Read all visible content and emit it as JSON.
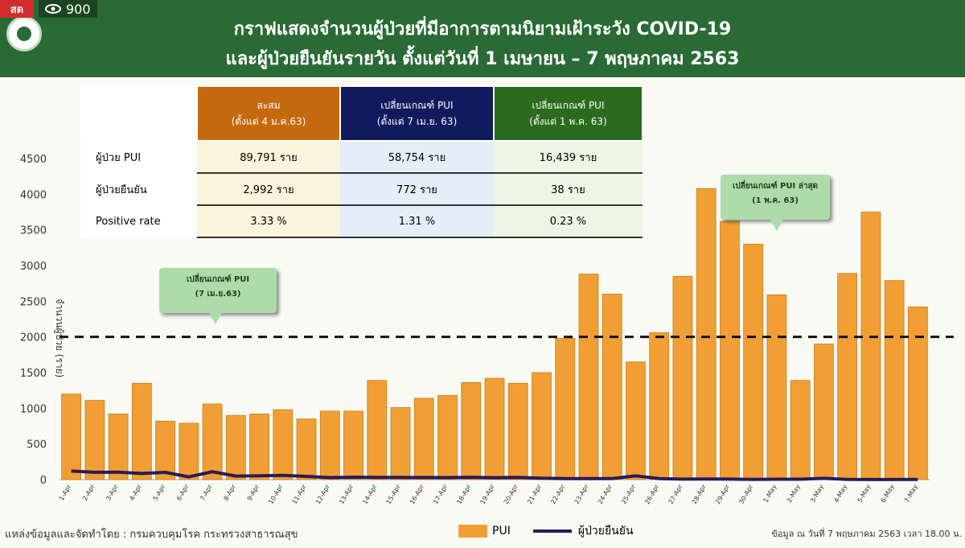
{
  "badge": {
    "live_label": "สด",
    "views": "900"
  },
  "header": {
    "title_line1": "กราฟแสดงจำนวนผู้ป่วยที่มีอาการตามนิยามเฝ้าระวัง COVID-19",
    "title_line2": "และผู้ป่วยยืนยันรายวัน ตั้งแต่วันที่ 1 เมษายน – 7 พฤษภาคม 2563"
  },
  "stats_table": {
    "headers": [
      {
        "line1": "สะสม",
        "line2": "(ตั้งแต่ 4 ม.ค.63)",
        "color": "#c5690f"
      },
      {
        "line1": "เปลี่ยนเกณฑ์ PUI",
        "line2": "(ตั้งแต่ 7 เม.ย. 63)",
        "color": "#121a5e"
      },
      {
        "line1": "เปลี่ยนเกณฑ์ PUI",
        "line2": "(ตั้งแต่ 1 พ.ค. 63)",
        "color": "#2a6b1e"
      }
    ],
    "rows": [
      {
        "label": "ผู้ป่วย PUI",
        "values": [
          "89,791 ราย",
          "58,754 ราย",
          "16,439 ราย"
        ]
      },
      {
        "label": "ผู้ป่วยยืนยัน",
        "values": [
          "2,992 ราย",
          "772 ราย",
          "38 ราย"
        ]
      },
      {
        "label": "Positive rate",
        "values": [
          "3.33 %",
          "1.31 %",
          "0.23 %"
        ]
      }
    ]
  },
  "callouts": {
    "pui_change_1": {
      "line1": "เปลี่ยนเกณฑ์ PUI",
      "line2": "(7 เม.ย.63)"
    },
    "pui_change_2": {
      "line1": "เปลี่ยนเกณฑ์ PUI ล่าสุด",
      "line2": "(1 พ.ค. 63)"
    }
  },
  "footer": {
    "source": "แหล่งข้อมูลและจัดทำโดย  :  กรมควบคุมโรค  กระทรวงสาธารณสุข",
    "data_note": "ข้อมูล ณ วันที่  7 พฤษภาคม 2563 เวลา 18.00 น."
  },
  "colors": {
    "bar": "#f19f34",
    "bar_edge": "#c97d1c",
    "line": "#2a1a55",
    "header_bg": "#2a6b35"
  },
  "chart_data": {
    "type": "bar",
    "ylabel": "จำนวนผู้ป่วย (ราย)",
    "ylim": [
      0,
      4500
    ],
    "yticks": [
      0,
      500,
      1000,
      1500,
      2000,
      2500,
      3000,
      3500,
      4000,
      4500
    ],
    "threshold": 2000,
    "categories": [
      "1-Apr",
      "2-Apr",
      "3-Apr",
      "4-Apr",
      "5-Apr",
      "6-Apr",
      "7-Apr",
      "8-Apr",
      "9-Apr",
      "10-Apr",
      "11-Apr",
      "12-Apr",
      "13-Apr",
      "14-Apr",
      "15-Apr",
      "16-Apr",
      "17-Apr",
      "18-Apr",
      "19-Apr",
      "20-Apr",
      "21-Apr",
      "22-Apr",
      "23-Apr",
      "24-Apr",
      "25-Apr",
      "26-Apr",
      "27-Apr",
      "28-Apr",
      "29-Apr",
      "30-Apr",
      "1-May",
      "2-May",
      "3-May",
      "4-May",
      "5-May",
      "6-May",
      "7-May"
    ],
    "series": [
      {
        "name": "PUI",
        "kind": "bar",
        "values": [
          1200,
          1110,
          920,
          1350,
          820,
          790,
          1060,
          900,
          920,
          980,
          850,
          960,
          960,
          1390,
          1010,
          1140,
          1180,
          1360,
          1420,
          1350,
          1500,
          1980,
          2880,
          2600,
          1650,
          2060,
          2850,
          4080,
          3620,
          3300,
          2590,
          1390,
          1900,
          2890,
          3750,
          2790,
          2420
        ]
      },
      {
        "name": "ผู้ป่วยยืนยัน",
        "kind": "line",
        "values": [
          120,
          103,
          104,
          86,
          102,
          38,
          111,
          50,
          54,
          60,
          45,
          28,
          34,
          30,
          30,
          29,
          28,
          33,
          27,
          32,
          19,
          15,
          13,
          15,
          53,
          15,
          7,
          9,
          7,
          3,
          6,
          6,
          18,
          3,
          1,
          1,
          3
        ]
      }
    ]
  }
}
